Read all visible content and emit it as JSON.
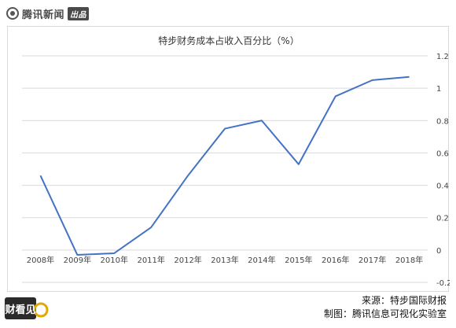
{
  "brand": {
    "name": "腾讯新闻",
    "badge": "出品"
  },
  "chart_data": {
    "type": "line",
    "title": "特步财务成本占收入百分比（%）",
    "xlabel": "",
    "ylabel": "",
    "categories": [
      "2008年",
      "2009年",
      "2010年",
      "2011年",
      "2012年",
      "2013年",
      "2014年",
      "2015年",
      "2016年",
      "2017年",
      "2018年"
    ],
    "series": [
      {
        "values": [
          0.46,
          -0.03,
          -0.02,
          0.14,
          0.46,
          0.75,
          0.8,
          0.53,
          0.95,
          1.05,
          1.07
        ]
      }
    ],
    "ylim": [
      -0.2,
      1.2
    ],
    "yticks": [
      1.2,
      1,
      0.8,
      0.6,
      0.4,
      0.2,
      0,
      -0.2
    ],
    "ytick_labels": [
      "1.2",
      "1",
      "0.8",
      "0.6",
      "0.4",
      "0.2",
      "0",
      "-0.2"
    ],
    "grid": true,
    "y_axis_position": "right",
    "line_color": "#4472C4",
    "grid_color": "#d9d9d9"
  },
  "footer": {
    "logo_text": "财看见",
    "source": "来源：特步国际财报",
    "credit": "制图：腾讯信息可视化实验室"
  }
}
